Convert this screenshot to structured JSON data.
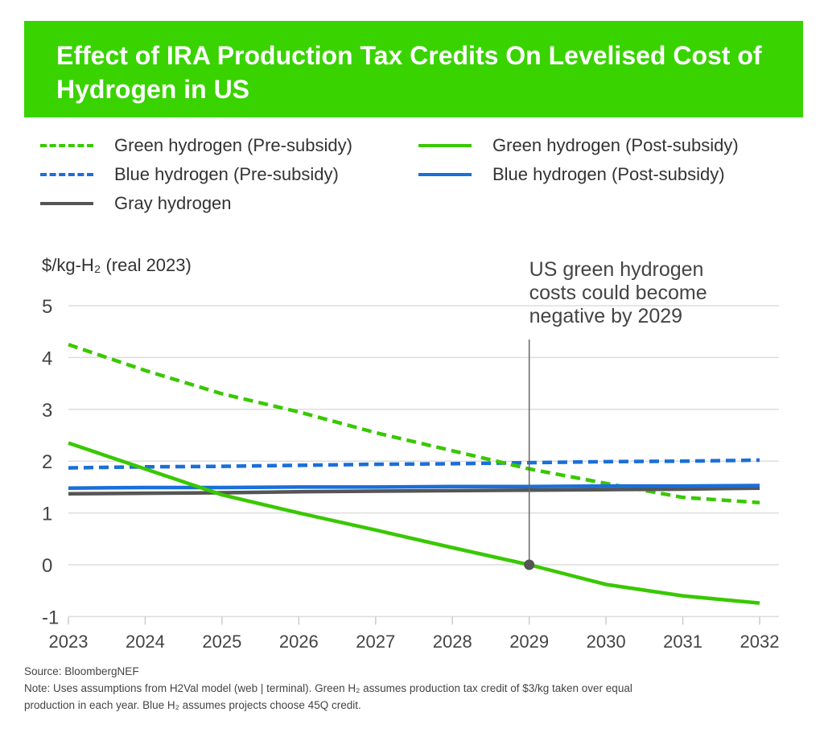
{
  "title": "Effect of IRA Production Tax Credits On Levelised Cost of Hydrogen in US",
  "colors": {
    "banner": "#39d300",
    "green": "#39c800",
    "blue": "#1a6fd8",
    "gray": "#555555"
  },
  "legend": [
    {
      "label": "Green hydrogen (Pre-subsidy)",
      "color": "#39c800",
      "style": "dashed"
    },
    {
      "label": "Green hydrogen (Post-subsidy)",
      "color": "#39c800",
      "style": "solid"
    },
    {
      "label": "Blue hydrogen (Pre-subsidy)",
      "color": "#1a6fd8",
      "style": "dashed"
    },
    {
      "label": "Blue hydrogen (Post-subsidy)",
      "color": "#1a6fd8",
      "style": "solid"
    },
    {
      "label": "Gray hydrogen",
      "color": "#555555",
      "style": "solid"
    }
  ],
  "chart_data": {
    "type": "line",
    "ylabel": "$/kg-H₂ (real 2023)",
    "ylim": [
      -1,
      5
    ],
    "yticks": [
      "5",
      "4",
      "3",
      "2",
      "1",
      "0",
      "-1"
    ],
    "x": [
      2023,
      2024,
      2025,
      2026,
      2027,
      2028,
      2029,
      2030,
      2031,
      2032
    ],
    "xticks": [
      "2023",
      "2024",
      "2025",
      "2026",
      "2027",
      "2028",
      "2029",
      "2030",
      "2031",
      "2032"
    ],
    "grid": true,
    "legend_position": "top",
    "series": [
      {
        "name": "Green hydrogen (Pre-subsidy)",
        "values": [
          4.25,
          3.75,
          3.3,
          2.95,
          2.55,
          2.2,
          1.85,
          1.57,
          1.3,
          1.2
        ]
      },
      {
        "name": "Green hydrogen (Post-subsidy)",
        "values": [
          2.35,
          1.85,
          1.35,
          1.0,
          0.67,
          0.33,
          0.0,
          -0.38,
          -0.6,
          -0.74
        ]
      },
      {
        "name": "Blue hydrogen (Pre-subsidy)",
        "values": [
          1.87,
          1.89,
          1.9,
          1.92,
          1.94,
          1.95,
          1.97,
          1.99,
          2.0,
          2.02
        ]
      },
      {
        "name": "Blue hydrogen (Post-subsidy)",
        "values": [
          1.48,
          1.49,
          1.49,
          1.5,
          1.5,
          1.51,
          1.51,
          1.52,
          1.52,
          1.53
        ]
      },
      {
        "name": "Gray hydrogen",
        "values": [
          1.37,
          1.38,
          1.39,
          1.41,
          1.42,
          1.43,
          1.44,
          1.45,
          1.46,
          1.48
        ]
      }
    ],
    "annotation": {
      "text": [
        "US green hydrogen",
        "costs could become",
        "negative by 2029"
      ],
      "x": 2029,
      "y": 0
    }
  },
  "footer": {
    "source": "Source: BloombergNEF",
    "note1": "Note: Uses assumptions from H2Val model (web | terminal). Green H₂ assumes production tax credit of $3/kg taken over equal",
    "note2": "production in each year. Blue H₂ assumes projects choose 45Q credit."
  }
}
